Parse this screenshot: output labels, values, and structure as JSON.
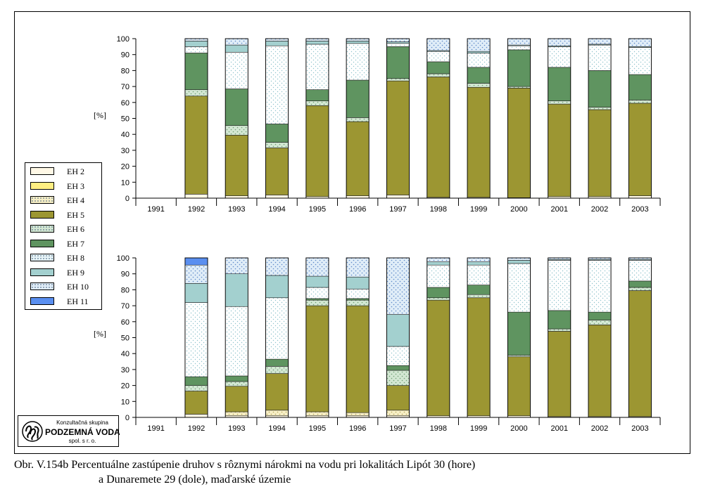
{
  "series_colors": {
    "EH 2": "#fff8e6",
    "EH 3": "#ffef82",
    "EH 4": "#f7efc6",
    "EH 5": "#9c9632",
    "EH 6": "#d3e7d3",
    "EH 7": "#5f9460",
    "EH 8": "#e6f3f7",
    "EH 9": "#a3d0cf",
    "EH 10": "#e0edf8",
    "EH 11": "#5a8ff0"
  },
  "chart_data": [
    {
      "type": "bar",
      "stacked": true,
      "normalized_percent": true,
      "ylabel": "[%]",
      "ylim": [
        0,
        100
      ],
      "yticks": [
        "0",
        "10",
        "20",
        "30",
        "40",
        "50",
        "60",
        "70",
        "80",
        "90",
        "100"
      ],
      "categories": [
        "1991",
        "1992",
        "1993",
        "1994",
        "1995",
        "1996",
        "1997",
        "1998",
        "1999",
        "2000",
        "2001",
        "2002",
        "2003"
      ],
      "grid": false,
      "series": [
        {
          "name": "EH 2",
          "values": [
            0,
            2.5,
            1.5,
            2,
            1,
            1.5,
            2,
            0.5,
            0.5,
            0.3,
            1,
            1,
            1.5
          ]
        },
        {
          "name": "EH 3",
          "values": [
            0,
            0,
            0,
            0,
            0,
            0,
            0,
            0,
            0,
            0,
            0,
            0,
            0
          ]
        },
        {
          "name": "EH 4",
          "values": [
            0,
            0,
            0,
            0,
            0,
            0,
            0,
            0,
            0,
            0,
            0,
            0,
            0
          ]
        },
        {
          "name": "EH 5",
          "values": [
            0,
            61.5,
            38,
            29.5,
            57,
            46.5,
            71.5,
            75.5,
            69,
            68.7,
            58,
            54.5,
            58
          ]
        },
        {
          "name": "EH 6",
          "values": [
            0,
            4,
            6,
            3.5,
            3,
            2.5,
            1.5,
            2,
            2.5,
            1,
            2,
            1.5,
            2
          ]
        },
        {
          "name": "EH 7",
          "values": [
            0,
            23,
            23,
            11.5,
            7,
            23.5,
            20,
            7.5,
            10,
            23,
            21,
            23,
            16
          ]
        },
        {
          "name": "EH 8",
          "values": [
            0,
            4,
            23,
            49,
            28.5,
            23,
            2,
            6.5,
            9,
            2.5,
            13,
            16,
            17
          ]
        },
        {
          "name": "EH 9",
          "values": [
            0,
            3.5,
            4.5,
            3,
            2,
            1.5,
            1,
            0.5,
            1,
            0.5,
            0.5,
            0.5,
            0.5
          ]
        },
        {
          "name": "EH 10",
          "values": [
            0,
            1.5,
            4,
            1.5,
            1.5,
            1.5,
            2,
            7.5,
            8,
            4,
            4.5,
            3.5,
            5
          ]
        },
        {
          "name": "EH 11",
          "values": [
            0,
            0,
            0,
            0,
            0,
            0,
            0,
            0,
            0,
            0,
            0,
            0,
            0
          ]
        }
      ]
    },
    {
      "type": "bar",
      "stacked": true,
      "normalized_percent": true,
      "ylabel": "[%]",
      "ylim": [
        0,
        100
      ],
      "yticks": [
        "0",
        "10",
        "20",
        "30",
        "40",
        "50",
        "60",
        "70",
        "80",
        "90",
        "100"
      ],
      "categories": [
        "1991",
        "1992",
        "1993",
        "1994",
        "1995",
        "1996",
        "1997",
        "1998",
        "1999",
        "2000",
        "2001",
        "2002",
        "2003"
      ],
      "grid": false,
      "series": [
        {
          "name": "EH 2",
          "values": [
            0,
            2,
            1,
            1,
            1,
            1,
            1,
            1,
            1,
            1,
            0.5,
            0.5,
            0.5
          ]
        },
        {
          "name": "EH 3",
          "values": [
            0,
            0,
            0,
            0,
            0,
            0,
            0,
            0,
            0,
            0,
            0,
            0,
            0
          ]
        },
        {
          "name": "EH 4",
          "values": [
            0,
            0,
            2.5,
            3.5,
            2.5,
            2,
            3.5,
            0,
            0,
            0,
            0,
            0,
            0
          ]
        },
        {
          "name": "EH 5",
          "values": [
            0,
            14.5,
            16,
            23,
            66.5,
            67,
            15.5,
            72.5,
            74,
            37,
            53.5,
            57.5,
            79
          ]
        },
        {
          "name": "EH 6",
          "values": [
            0,
            3.5,
            3,
            4.5,
            3.5,
            3.5,
            9.5,
            1.5,
            2,
            1,
            1.5,
            3,
            2
          ]
        },
        {
          "name": "EH 7",
          "values": [
            0,
            5.5,
            3.5,
            4.5,
            1,
            1,
            3,
            6.5,
            6,
            27,
            11.5,
            5,
            4
          ]
        },
        {
          "name": "EH 8",
          "values": [
            0,
            46.5,
            43.5,
            38.5,
            7,
            6,
            12,
            14,
            12.5,
            30.5,
            31.5,
            32.5,
            13
          ]
        },
        {
          "name": "EH 9",
          "values": [
            0,
            12,
            20.5,
            14,
            7,
            7.5,
            20,
            2,
            2,
            2,
            0.5,
            0.5,
            0.5
          ]
        },
        {
          "name": "EH 10",
          "values": [
            0,
            11.5,
            10,
            11,
            11.5,
            12,
            35.5,
            2.5,
            2.5,
            1.5,
            1,
            1,
            1
          ]
        },
        {
          "name": "EH 11",
          "values": [
            0,
            4.5,
            0,
            0,
            0,
            0,
            0,
            0,
            0,
            0,
            0,
            0,
            0
          ]
        }
      ]
    }
  ],
  "legend": {
    "items": [
      "EH 2",
      "EH 3",
      "EH 4",
      "EH 5",
      "EH 6",
      "EH 7",
      "EH 8",
      "EH 9",
      "EH 10",
      "EH 11"
    ]
  },
  "logo": {
    "top": "Konzultačná skupina",
    "name": "PODZEMNÁ VODA",
    "sub": "spol. s r. o."
  },
  "caption": {
    "line1": "Obr. V.154b Percentuálne zastúpenie druhov s rôznymi nárokmi na vodu pri lokalitách Lipót 30 (hore)",
    "line2": "a Dunaremete 29 (dole), maďarské územie"
  }
}
